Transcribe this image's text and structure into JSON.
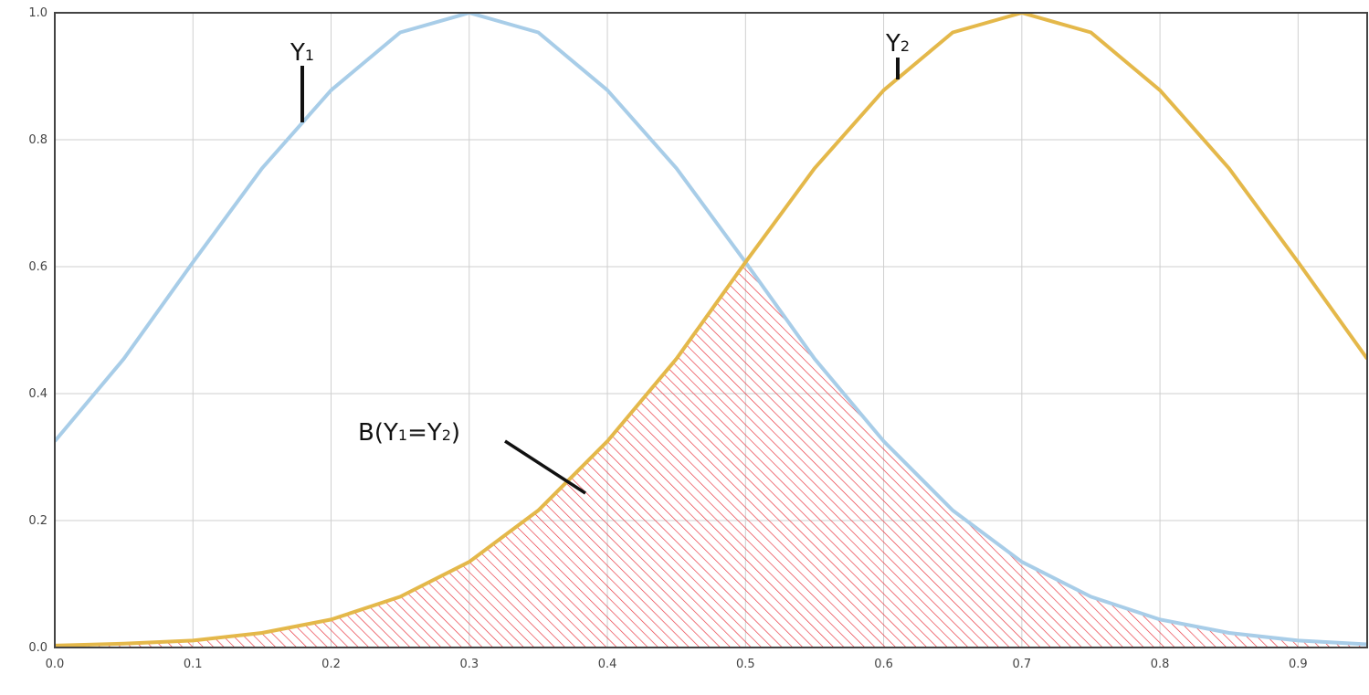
{
  "chart_data": {
    "type": "line",
    "title": "",
    "xlabel": "",
    "ylabel": "",
    "xlim": [
      0.0,
      0.95
    ],
    "ylim": [
      0.0,
      1.0
    ],
    "grid": true,
    "legend": "none",
    "x_ticks": [
      {
        "value": 0.0,
        "label": "0.0"
      },
      {
        "value": 0.1,
        "label": "0.1"
      },
      {
        "value": 0.2,
        "label": "0.2"
      },
      {
        "value": 0.3,
        "label": "0.3"
      },
      {
        "value": 0.4,
        "label": "0.4"
      },
      {
        "value": 0.5,
        "label": "0.5"
      },
      {
        "value": 0.6,
        "label": "0.6"
      },
      {
        "value": 0.7,
        "label": "0.7"
      },
      {
        "value": 0.8,
        "label": "0.8"
      },
      {
        "value": 0.9,
        "label": "0.9"
      }
    ],
    "y_ticks": [
      {
        "value": 0.0,
        "label": "0.0"
      },
      {
        "value": 0.2,
        "label": "0.2"
      },
      {
        "value": 0.4,
        "label": "0.4"
      },
      {
        "value": 0.6,
        "label": "0.6"
      },
      {
        "value": 0.8,
        "label": "0.8"
      },
      {
        "value": 1.0,
        "label": "1.0"
      }
    ],
    "x": [
      0.0,
      0.05,
      0.1,
      0.15,
      0.2,
      0.25,
      0.3,
      0.35,
      0.4,
      0.45,
      0.5,
      0.55,
      0.6,
      0.65,
      0.7,
      0.75,
      0.8,
      0.85,
      0.9,
      0.95
    ],
    "series": [
      {
        "key": "y1",
        "color": "#a8cde8",
        "values": [
          0.325,
          0.455,
          0.607,
          0.755,
          0.878,
          0.969,
          1.0,
          0.969,
          0.878,
          0.755,
          0.607,
          0.455,
          0.325,
          0.216,
          0.135,
          0.08,
          0.044,
          0.023,
          0.011,
          0.005
        ]
      },
      {
        "key": "y2",
        "color": "#e4b84a",
        "values": [
          0.003,
          0.006,
          0.011,
          0.023,
          0.044,
          0.08,
          0.135,
          0.216,
          0.325,
          0.455,
          0.607,
          0.755,
          0.878,
          0.969,
          1.0,
          0.969,
          0.878,
          0.755,
          0.607,
          0.455
        ]
      }
    ],
    "overlap_region": {
      "key": "overlap",
      "hatch_color": "#e8303a"
    },
    "annotations": [
      {
        "key": "y1",
        "main": "Y",
        "sub": "1",
        "suffix": "",
        "prefix": "",
        "mid": ""
      },
      {
        "key": "y2",
        "main": "Y",
        "sub": "2",
        "suffix": "",
        "prefix": "",
        "mid": ""
      },
      {
        "key": "overlap",
        "prefix": "B(Y",
        "sub": "1",
        "mid": "=Y",
        "sub2": "2",
        "suffix": ")"
      }
    ]
  }
}
